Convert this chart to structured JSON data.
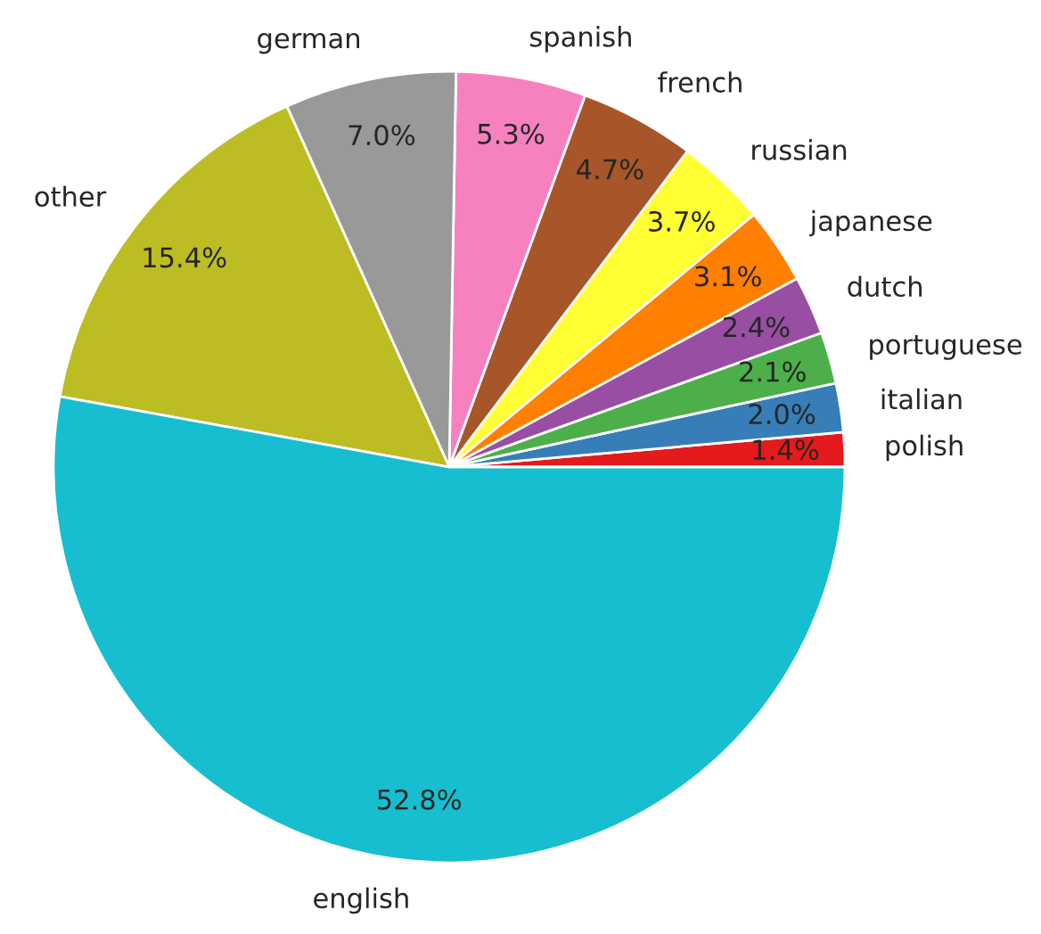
{
  "chart_data": {
    "type": "pie",
    "categories": [
      "polish",
      "italian",
      "portuguese",
      "dutch",
      "japanese",
      "russian",
      "french",
      "spanish",
      "german",
      "other",
      "english"
    ],
    "values": [
      1.4,
      2.0,
      2.1,
      2.4,
      3.1,
      3.7,
      4.7,
      5.3,
      7.0,
      15.4,
      52.8
    ],
    "value_labels": [
      "1.4%",
      "2.0%",
      "2.1%",
      "2.4%",
      "3.1%",
      "3.7%",
      "4.7%",
      "5.3%",
      "7.0%",
      "15.4%",
      "52.8%"
    ],
    "colors": [
      "#e41a1c",
      "#377eb8",
      "#4daf4a",
      "#984ea3",
      "#ff7f00",
      "#ffff33",
      "#a65628",
      "#f781bf",
      "#999999",
      "#bcbd22",
      "#17becf"
    ]
  }
}
